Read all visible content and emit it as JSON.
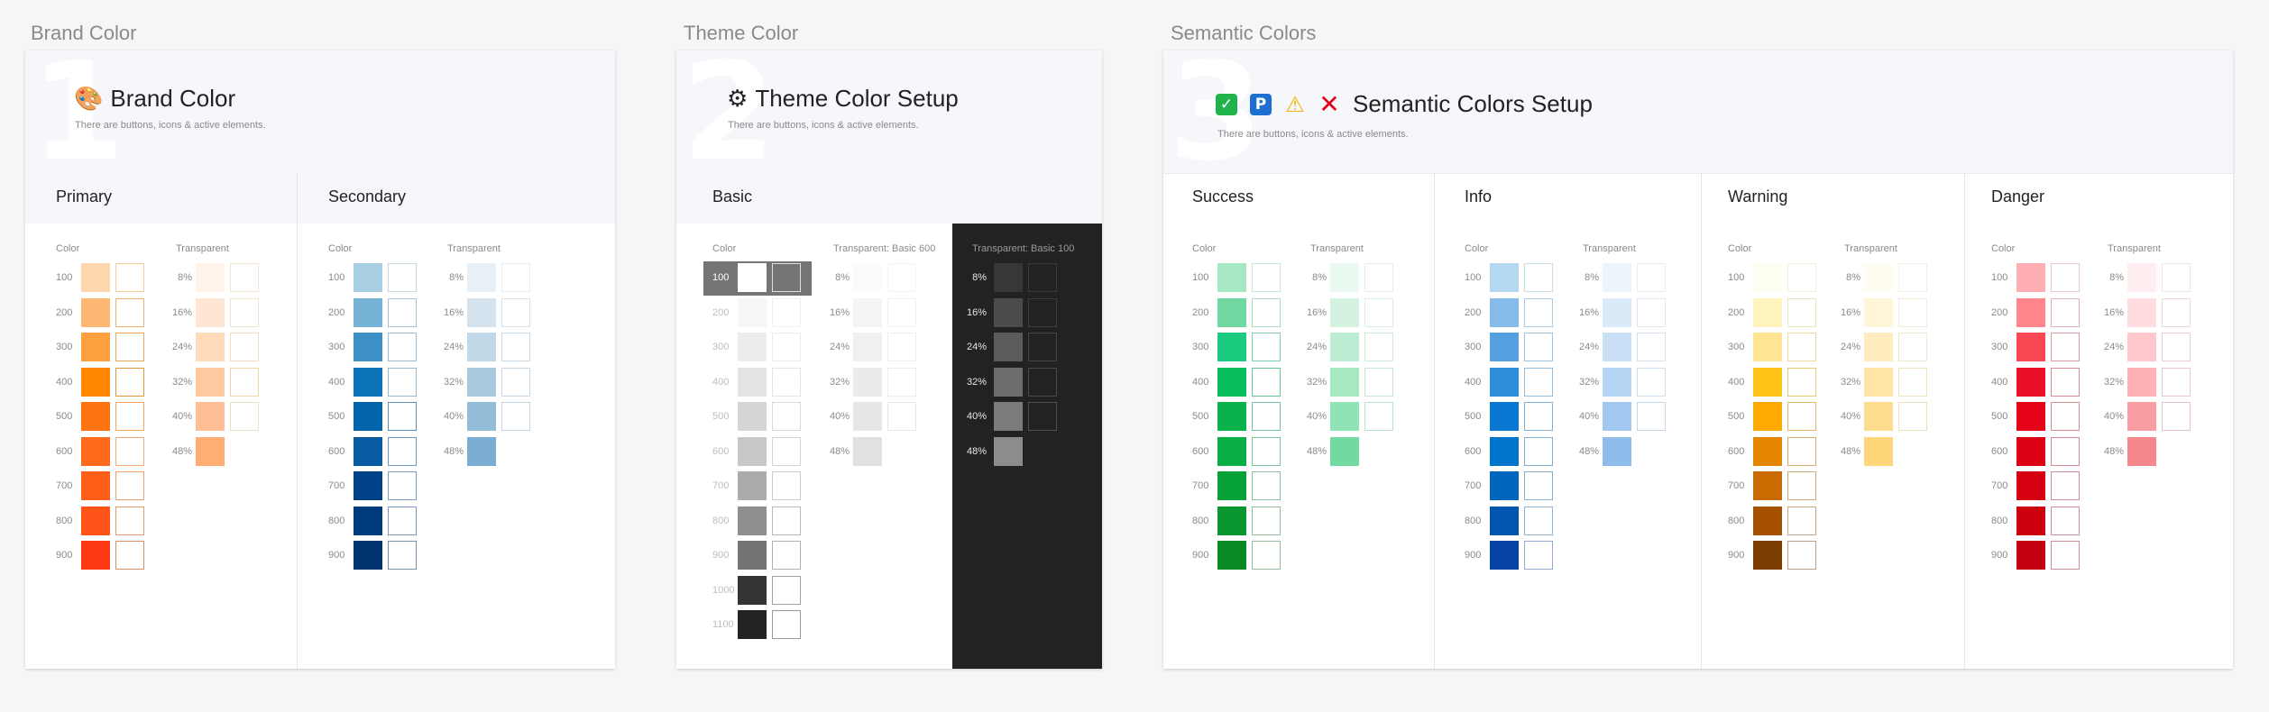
{
  "sections": [
    {
      "label": "Brand Color"
    },
    {
      "label": "Theme Color"
    },
    {
      "label": "Semantic Colors"
    }
  ],
  "cards": [
    {
      "number": "1",
      "title": "Brand Color",
      "subtitle": "There are buttons, icons & active elements.",
      "icon": "palette-icon",
      "glyph": "🎨"
    },
    {
      "number": "2",
      "title": "Theme Color Setup",
      "subtitle": "There are buttons, icons & active elements.",
      "icon": "gear-icon",
      "glyph": "⚙"
    },
    {
      "number": "3",
      "title": "Semantic Colors Setup",
      "subtitle": "There are buttons, icons & active elements.",
      "emojis": [
        {
          "icon": "check-mark-icon",
          "glyph": "✓"
        },
        {
          "icon": "parking-sign-icon",
          "glyph": "P"
        },
        {
          "icon": "warning-icon",
          "glyph": "⚠"
        },
        {
          "icon": "cross-mark-icon",
          "glyph": "✕"
        }
      ]
    }
  ],
  "labels": {
    "color": "Color",
    "transparent": "Transparent",
    "transparent_basic600": "Transparent: Basic 600",
    "transparent_basic100": "Transparent: Basic 100"
  },
  "levels": [
    "100",
    "200",
    "300",
    "400",
    "500",
    "600",
    "700",
    "800",
    "900"
  ],
  "basic_levels": [
    "100",
    "200",
    "300",
    "400",
    "500",
    "600",
    "700",
    "800",
    "900",
    "1000",
    "1100"
  ],
  "transparency": [
    "8%",
    "16%",
    "24%",
    "32%",
    "40%",
    "48%"
  ],
  "palettes": {
    "primary": {
      "name": "Primary",
      "colors": [
        "#FFD7AE",
        "#FFB774",
        "#FFA040",
        "#FF8800",
        "#FF7412",
        "#FF6A1A",
        "#FF5E19",
        "#FF5217",
        "#FF3814"
      ],
      "outline": [
        "#F7C99A",
        "#F4B176",
        "#EDA35C",
        "#E39638",
        "#F3A75E",
        "#F0A877",
        "#E9A06B",
        "#E1986A",
        "#D88F6A"
      ],
      "transparent": [
        "#FFF3EA",
        "#FFE5D3",
        "#FFDABB",
        "#FFC9A0",
        "#FFBF95",
        "#FFAD73"
      ],
      "t_outline": [
        "#F3E5D6",
        "#EFE3CF",
        "#EEDDC2",
        "#EBD7A9",
        "#E8E2C8",
        "#FFFFFF"
      ]
    },
    "secondary": {
      "name": "Secondary",
      "colors": [
        "#A9CFE3",
        "#76B2D6",
        "#3D90C5",
        "#0A73B7",
        "#0264AB",
        "#075BA0",
        "#00428A",
        "#003B7D",
        "#003572"
      ],
      "outline": [
        "#C8D8E2",
        "#A8C2D6",
        "#99BDD8",
        "#98B9CE",
        "#5F8FB6",
        "#6E9BC1",
        "#7A9EC2",
        "#7B9CBE",
        "#7A8FB0"
      ],
      "transparent": [
        "#E8F0F7",
        "#D4E3ED",
        "#C0D8E8",
        "#A7C9DD",
        "#93BDD7",
        "#7BAED0"
      ],
      "t_outline": [
        "#E6EDF3",
        "#D7E2EB",
        "#CAD9E6",
        "#C8D7E2",
        "#C2D6E2",
        "#FFFFFF"
      ]
    },
    "basic": {
      "name": "Basic",
      "colors": [
        "#FFFFFF",
        "#F7F7F7",
        "#EDEDED",
        "#E4E4E4",
        "#D6D6D6",
        "#C8C8C8",
        "#ABABAB",
        "#8F8F8F",
        "#747474",
        "#343434",
        "#222222"
      ],
      "outline": [
        "#747474",
        "#F0F0F0",
        "#EBEBEB",
        "#E2E2E2",
        "#DADADA",
        "#D4D4D4",
        "#CCCCCC",
        "#BBBBBB",
        "#AFAFAF",
        "#A3A3A3",
        "#9A9A9A"
      ],
      "transparent": [
        "#FBFBFB",
        "#F5F5F5",
        "#F0F0F0",
        "#EBEBEB",
        "#E7E7E7",
        "#E1E1E1"
      ],
      "t_outline": [
        "#F5F5F5",
        "#F2F2F2",
        "#EEEEEE",
        "#EBEBEB",
        "#E8E8E8",
        "#FFFFFF"
      ],
      "dark_transparent": [
        "#373737",
        "#4B4B4B",
        "#5B5B5B",
        "#6C6C6C",
        "#7B7B7B",
        "#8C8C8C"
      ],
      "dark_outline": [
        "#3A3A3A",
        "#3E3E3E",
        "#444444",
        "#4A4A4A",
        "#505050",
        "#222222"
      ]
    },
    "success": {
      "name": "Success",
      "colors": [
        "#A6E8C4",
        "#6FD8A2",
        "#1ACB7F",
        "#08BE5C",
        "#09B24B",
        "#07AF45",
        "#06A239",
        "#0A962F",
        "#078A24"
      ],
      "outline": [
        "#C8E9D6",
        "#A7DCBF",
        "#7CD1A8",
        "#69C697",
        "#75C198",
        "#7FC59E",
        "#8AC39F",
        "#8DBE9C",
        "#94BE9E"
      ],
      "transparent": [
        "#E9F9EF",
        "#D3F3E0",
        "#BCEDD2",
        "#A6E8C2",
        "#8FE3B5",
        "#72DAA0"
      ],
      "t_outline": [
        "#E1EFE6",
        "#D8EFE1",
        "#CBEBD9",
        "#C2E6D2",
        "#B7E3CB",
        "#FFFFFF"
      ]
    },
    "info": {
      "name": "Info",
      "colors": [
        "#B4D7F2",
        "#84BBE9",
        "#539FE0",
        "#2C8EDB",
        "#0A78D2",
        "#0073CA",
        "#0067BD",
        "#0356B0",
        "#0644A6"
      ],
      "outline": [
        "#CBDCE9",
        "#ADCCE3",
        "#9CC2E1",
        "#96BEDD",
        "#7FB1D7",
        "#7FB1D5",
        "#84B0D3",
        "#8DB0D3",
        "#94ACD0"
      ],
      "transparent": [
        "#EDF5FC",
        "#DAEAF8",
        "#C8DFF5",
        "#B5D3F2",
        "#A3C8EF",
        "#8FBDEB"
      ],
      "t_outline": [
        "#E5EEF6",
        "#DCE7F1",
        "#D4E2EF",
        "#CDDDEC",
        "#C5D8EA",
        "#FFFFFF"
      ]
    },
    "warning": {
      "name": "Warning",
      "colors": [
        "#FFFEF2",
        "#FFF3BE",
        "#FFE493",
        "#FFC216",
        "#FFAA03",
        "#E58500",
        "#C96B00",
        "#A65100",
        "#7C3E00"
      ],
      "outline": [
        "#F2EFDF",
        "#ECE5BA",
        "#EADB9E",
        "#E6CB74",
        "#E0BA66",
        "#D5AE6E",
        "#CDA77A",
        "#C6A382",
        "#BDA08A"
      ],
      "transparent": [
        "#FFFCF2",
        "#FFF5D8",
        "#FFEDC0",
        "#FFE4A6",
        "#FFDD8F",
        "#FFD679"
      ],
      "t_outline": [
        "#F4F0E2",
        "#F0ECD9",
        "#EEE8CC",
        "#EDE4BF",
        "#ECE3BB",
        "#FFFFFF"
      ]
    },
    "danger": {
      "name": "Danger",
      "colors": [
        "#FFAEB4",
        "#FF868D",
        "#F94854",
        "#EA102A",
        "#E70317",
        "#DC0014",
        "#D50010",
        "#CC000F",
        "#C20012"
      ],
      "outline": [
        "#E7C8CB",
        "#E2B1B6",
        "#DE9AA1",
        "#D98D96",
        "#D78C94",
        "#D48D94",
        "#D19099",
        "#CC9197",
        "#C89297"
      ],
      "transparent": [
        "#FFEEF0",
        "#FFDCE0",
        "#FFC8CC",
        "#FFB1B6",
        "#FB9EA3",
        "#F5878D"
      ],
      "t_outline": [
        "#F4E4E6",
        "#EED7DA",
        "#EBCED2",
        "#E9C6CA",
        "#E6C1C5",
        "#FFFFFF"
      ]
    }
  }
}
